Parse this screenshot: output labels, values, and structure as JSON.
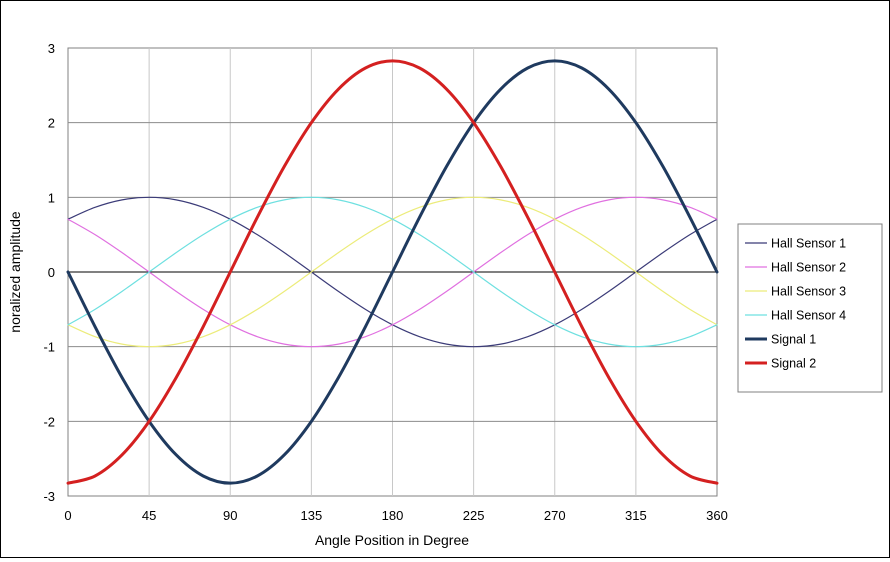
{
  "chart_data": {
    "type": "line",
    "title": "",
    "xlabel": "Angle Position in Degree",
    "ylabel": "noralized  amplitude",
    "xlim": [
      0,
      360
    ],
    "ylim": [
      -3,
      3
    ],
    "x_ticks": [
      0,
      45,
      90,
      135,
      180,
      225,
      270,
      315,
      360
    ],
    "y_ticks": [
      -3,
      -2,
      -1,
      0,
      1,
      2,
      3
    ],
    "x_tick_labels": [
      "0",
      "45",
      "90",
      "135",
      "180",
      "225",
      "270",
      "315",
      "360"
    ],
    "y_tick_labels": [
      "-3",
      "-2",
      "-1",
      "0",
      "1",
      "2",
      "3"
    ],
    "grid": {
      "vertical": true,
      "horizontal": true
    },
    "legend_position": "right",
    "x": [
      0,
      15,
      30,
      45,
      60,
      75,
      90,
      105,
      120,
      135,
      150,
      165,
      180,
      195,
      210,
      225,
      240,
      255,
      270,
      285,
      300,
      315,
      330,
      345,
      360
    ],
    "series": [
      {
        "name": "Hall Sensor 1",
        "color": "#3b3b78",
        "width": "thin",
        "values": [
          0.707,
          0.866,
          0.966,
          1.0,
          0.966,
          0.866,
          0.707,
          0.5,
          0.259,
          0.0,
          -0.259,
          -0.5,
          -0.707,
          -0.866,
          -0.966,
          -1.0,
          -0.966,
          -0.866,
          -0.707,
          -0.5,
          -0.259,
          0.0,
          0.259,
          0.5,
          0.707
        ]
      },
      {
        "name": "Hall Sensor 2",
        "color": "#e070e0",
        "width": "thin",
        "values": [
          0.707,
          0.5,
          0.259,
          0.0,
          -0.259,
          -0.5,
          -0.707,
          -0.866,
          -0.966,
          -1.0,
          -0.966,
          -0.866,
          -0.707,
          -0.5,
          -0.259,
          0.0,
          0.259,
          0.5,
          0.707,
          0.866,
          0.966,
          1.0,
          0.966,
          0.866,
          0.707
        ]
      },
      {
        "name": "Hall Sensor 3",
        "color": "#ecec7a",
        "width": "thin",
        "values": [
          -0.707,
          -0.866,
          -0.966,
          -1.0,
          -0.966,
          -0.866,
          -0.707,
          -0.5,
          -0.259,
          0.0,
          0.259,
          0.5,
          0.707,
          0.866,
          0.966,
          1.0,
          0.966,
          0.866,
          0.707,
          0.5,
          0.259,
          0.0,
          -0.259,
          -0.5,
          -0.707
        ]
      },
      {
        "name": "Hall Sensor 4",
        "color": "#6ee0e0",
        "width": "thin",
        "values": [
          -0.707,
          -0.5,
          -0.259,
          0.0,
          0.259,
          0.5,
          0.707,
          0.866,
          0.966,
          1.0,
          0.966,
          0.866,
          0.707,
          0.5,
          0.259,
          0.0,
          -0.259,
          -0.5,
          -0.707,
          -0.866,
          -0.966,
          -1.0,
          -0.966,
          -0.866,
          -0.707
        ]
      },
      {
        "name": "Signal 1",
        "color": "#1f3a5f",
        "width": "thick",
        "values": [
          0.0,
          -0.732,
          -1.414,
          -2.0,
          -2.449,
          -2.732,
          -2.828,
          -2.732,
          -2.449,
          -2.0,
          -1.414,
          -0.732,
          0.0,
          0.732,
          1.414,
          2.0,
          2.449,
          2.732,
          2.828,
          2.732,
          2.449,
          2.0,
          1.414,
          0.732,
          0.0
        ]
      },
      {
        "name": "Signal 2",
        "color": "#d42020",
        "width": "thick",
        "values": [
          -2.828,
          -2.732,
          -2.449,
          -2.0,
          -1.414,
          -0.732,
          0.0,
          0.732,
          1.414,
          2.0,
          2.449,
          2.732,
          2.828,
          2.732,
          2.449,
          2.0,
          1.414,
          0.732,
          0.0,
          -0.732,
          -1.414,
          -2.0,
          -2.449,
          -2.732,
          -2.828
        ]
      }
    ]
  }
}
